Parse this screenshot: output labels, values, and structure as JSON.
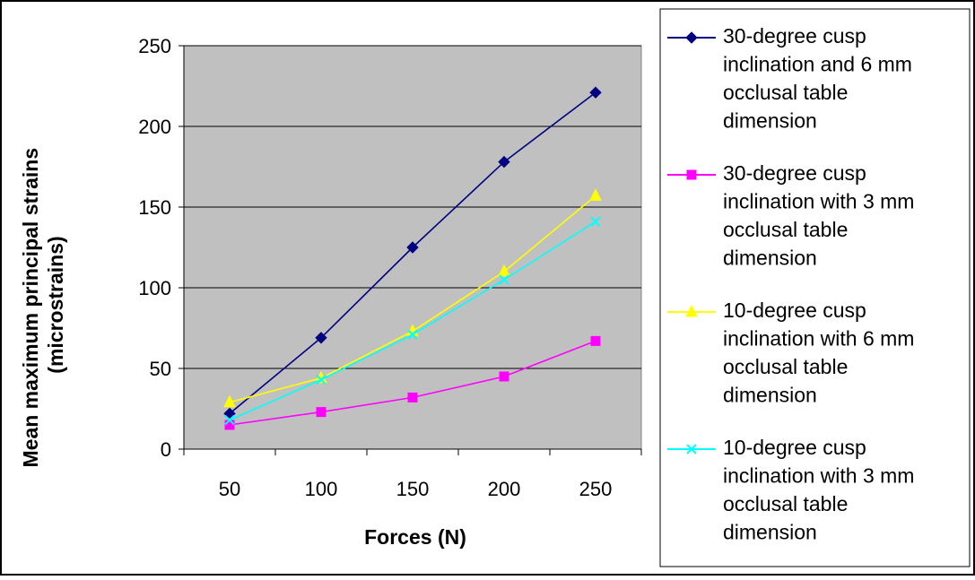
{
  "chart_data": {
    "type": "line",
    "xlabel": "Forces (N)",
    "ylabel_line1": "Mean maximum principal strains",
    "ylabel_line2": "(microstrains)",
    "categories": [
      "50",
      "100",
      "150",
      "200",
      "250"
    ],
    "ylim": [
      0,
      250
    ],
    "yticks": [
      "0",
      "50",
      "100",
      "150",
      "200",
      "250"
    ],
    "grid": true,
    "legend_position": "right",
    "series": [
      {
        "name": "30-degree cusp inclination and 6 mm occlusal table dimension",
        "legend_lines": [
          "30-degree cusp",
          "inclination and 6 mm",
          "occlusal table",
          "dimension"
        ],
        "values": [
          22,
          69,
          125,
          178,
          221
        ],
        "color": "#000080",
        "marker": "diamond"
      },
      {
        "name": "30-degree cusp inclination with 3 mm occlusal table dimension",
        "legend_lines": [
          "30-degree cusp",
          "inclination with 3 mm",
          "occlusal table",
          "dimension"
        ],
        "values": [
          15,
          23,
          32,
          45,
          67
        ],
        "color": "#FF00FF",
        "marker": "square"
      },
      {
        "name": "10-degree cusp inclination with 6 mm occlusal table dimension",
        "legend_lines": [
          "10-degree cusp",
          "inclination with 6 mm",
          "occlusal table",
          "dimension"
        ],
        "values": [
          29,
          44,
          73,
          110,
          157
        ],
        "color": "#FFFF00",
        "marker": "triangle"
      },
      {
        "name": "10-degree cusp inclination with 3 mm occlusal table dimension",
        "legend_lines": [
          "10-degree cusp",
          "inclination with 3 mm",
          "occlusal table",
          "dimension"
        ],
        "values": [
          18,
          43,
          71,
          105,
          141
        ],
        "color": "#00FFFF",
        "marker": "x"
      }
    ],
    "plot_background": "#C0C0C0"
  }
}
